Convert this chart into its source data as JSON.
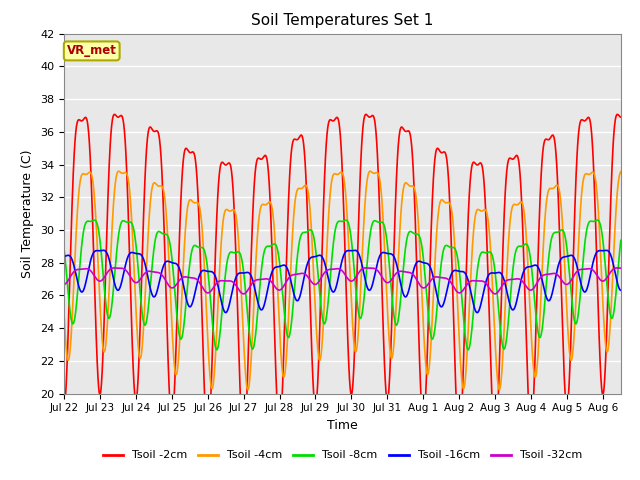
{
  "title": "Soil Temperatures Set 1",
  "xlabel": "Time",
  "ylabel": "Soil Temperature (C)",
  "ylim": [
    20,
    42
  ],
  "yticks": [
    20,
    22,
    24,
    26,
    28,
    30,
    32,
    34,
    36,
    38,
    40,
    42
  ],
  "x_labels": [
    "Jul 22",
    "Jul 23",
    "Jul 24",
    "Jul 25",
    "Jul 26",
    "Jul 27",
    "Jul 28",
    "Jul 29",
    "Jul 30",
    "Jul 31",
    "Aug 1",
    "Aug 2",
    "Aug 3",
    "Aug 4",
    "Aug 5",
    "Aug 6"
  ],
  "colors": {
    "Tsoil -2cm": "#ff0000",
    "Tsoil -4cm": "#ff9900",
    "Tsoil -8cm": "#00dd00",
    "Tsoil -16cm": "#0000ff",
    "Tsoil -32cm": "#cc00cc"
  },
  "annotation_text": "VR_met",
  "bg_color": "#e8e8e8",
  "fig_color": "#ffffff",
  "linewidth": 1.2,
  "n_days": 15.5,
  "pts_per_day": 144,
  "params": {
    "t2cm": {
      "mean": 29.5,
      "amp": 8.5,
      "phase": 0.0,
      "lag": 0.0,
      "slow_amp": 1.5,
      "slow_phase": 0.5
    },
    "t4cm": {
      "mean": 28.5,
      "amp": 5.5,
      "phase": 0.0,
      "lag": 0.12,
      "slow_amp": 1.2,
      "slow_phase": 0.5
    },
    "t8cm": {
      "mean": 27.5,
      "amp": 3.0,
      "phase": 0.0,
      "lag": 0.25,
      "slow_amp": 1.0,
      "slow_phase": 0.5
    },
    "t16cm": {
      "mean": 27.2,
      "amp": 1.2,
      "phase": 0.0,
      "lag": 0.5,
      "slow_amp": 0.7,
      "slow_phase": 0.5
    },
    "t32cm": {
      "mean": 27.0,
      "amp": 0.4,
      "phase": 0.0,
      "lag": 1.0,
      "slow_amp": 0.4,
      "slow_phase": 0.5
    }
  }
}
